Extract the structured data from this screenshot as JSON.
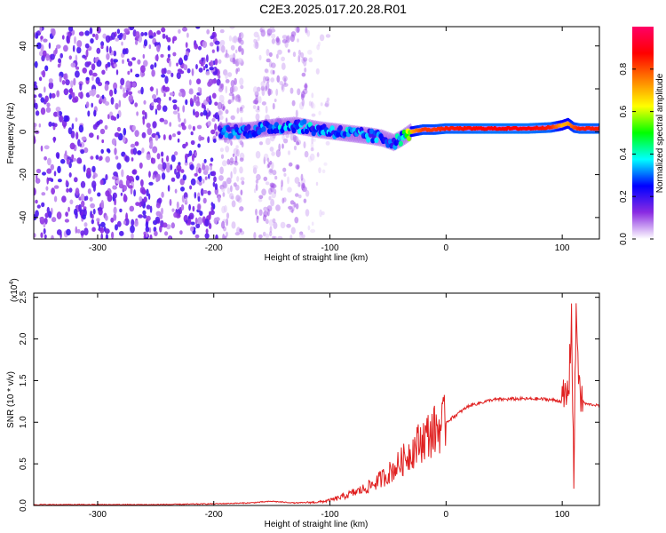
{
  "title": "C2E3.2025.017.20.28.R01",
  "chart_data": [
    {
      "type": "heatmap",
      "xlabel": "Height of straight line (km)",
      "ylabel": "Frequency (Hz)",
      "xlim": [
        -355,
        132
      ],
      "ylim": [
        -50,
        49
      ],
      "xticks": [
        -300,
        -200,
        -100,
        0,
        100
      ],
      "yticks": [
        -40,
        -20,
        0,
        20,
        40
      ],
      "colorbar": {
        "label": "Normalized spectral amplitude",
        "range": [
          0,
          1
        ],
        "ticks": [
          "0.0",
          "0.2",
          "0.4",
          "0.6",
          "0.8"
        ],
        "colors": [
          "#ffffff",
          "#8a2be2",
          "#0000ff",
          "#00ffff",
          "#00ff00",
          "#ffff00",
          "#ff8000",
          "#ff0000",
          "#ff0066"
        ]
      },
      "ridge": {
        "x": [
          -195,
          -170,
          -150,
          -130,
          -110,
          -95,
          -80,
          -65,
          -55,
          -45,
          -38,
          -30,
          -20,
          -10,
          0,
          40,
          70,
          90,
          100,
          105,
          110,
          115,
          132
        ],
        "y": [
          0,
          0.5,
          2,
          3,
          1,
          0,
          -1,
          -2,
          -3,
          -5,
          -3,
          0,
          1,
          1,
          1.5,
          1.5,
          1.5,
          2,
          3,
          4,
          2,
          1.5,
          1.5
        ],
        "amplitude": [
          0.3,
          0.32,
          0.34,
          0.36,
          0.35,
          0.36,
          0.35,
          0.33,
          0.32,
          0.3,
          0.45,
          0.7,
          0.82,
          0.82,
          0.85,
          0.88,
          0.88,
          0.85,
          0.7,
          0.72,
          0.8,
          0.85,
          0.85
        ]
      }
    },
    {
      "type": "line",
      "xlabel": "Height of straight line (km)",
      "ylabel": "SNR (10 * v/v)",
      "yexponent": "(x10",
      "yexponent_power": "4",
      "yexponent_close": ")",
      "xlim": [
        -355,
        132
      ],
      "ylim": [
        0,
        2.55
      ],
      "xticks": [
        -300,
        -200,
        -100,
        0,
        100
      ],
      "yticks": [
        "0.0",
        "0.5",
        "1.0",
        "1.5",
        "2.0",
        "2.5"
      ],
      "color": "#e02020",
      "series": [
        {
          "x": [
            -355,
            -250,
            -200,
            -170,
            -150,
            -130,
            -110,
            -100,
            -90,
            -80,
            -70,
            -60,
            -50,
            -40,
            -30,
            -20,
            -10,
            0,
            10,
            20,
            40,
            60,
            80,
            90,
            100,
            104,
            106,
            108,
            110,
            112,
            115,
            120,
            132
          ],
          "y": [
            0.01,
            0.01,
            0.02,
            0.03,
            0.05,
            0.03,
            0.04,
            0.06,
            0.1,
            0.15,
            0.2,
            0.28,
            0.38,
            0.5,
            0.65,
            0.8,
            0.9,
            1.0,
            1.1,
            1.2,
            1.27,
            1.28,
            1.28,
            1.27,
            1.25,
            1.3,
            1.5,
            2.3,
            0.3,
            2.4,
            1.3,
            1.22,
            1.2
          ]
        }
      ]
    }
  ]
}
